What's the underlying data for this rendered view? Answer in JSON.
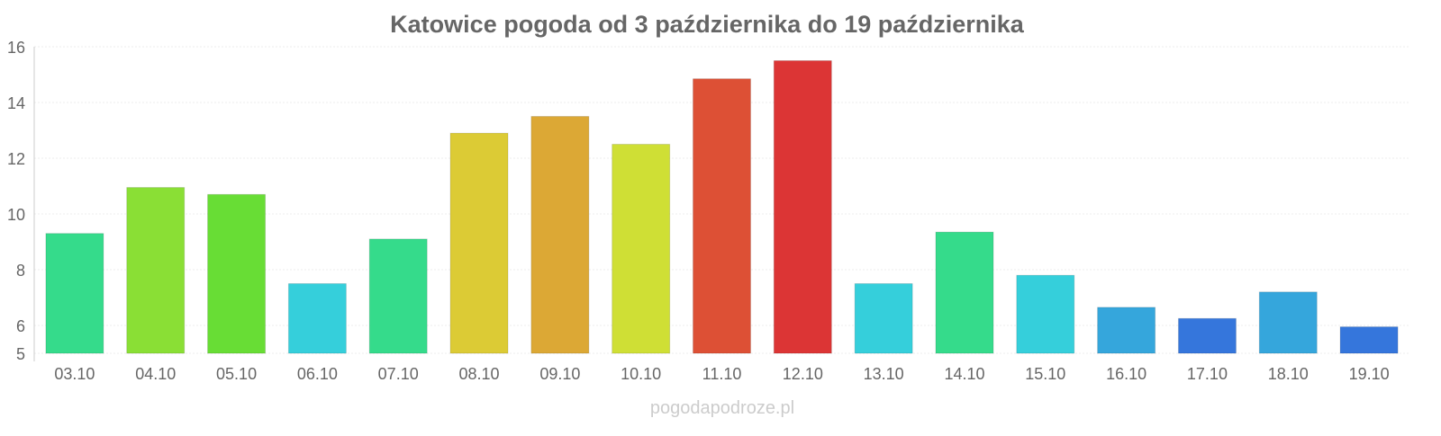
{
  "chart_data": {
    "type": "bar",
    "title": "Katowice pogoda od 3 października do 19 października",
    "xlabel": "",
    "ylabel": "",
    "ylim": [
      5,
      16
    ],
    "yticks": [
      5,
      6,
      8,
      10,
      12,
      14,
      16
    ],
    "grid": true,
    "categories": [
      "03.10",
      "04.10",
      "05.10",
      "06.10",
      "07.10",
      "08.10",
      "09.10",
      "10.10",
      "11.10",
      "12.10",
      "13.10",
      "14.10",
      "15.10",
      "16.10",
      "17.10",
      "18.10",
      "19.10"
    ],
    "values": [
      9.3,
      10.95,
      10.7,
      7.5,
      9.1,
      12.9,
      13.5,
      12.5,
      14.85,
      15.5,
      7.5,
      9.35,
      7.8,
      6.65,
      6.25,
      7.2,
      5.95
    ],
    "colors": [
      "#35db8b",
      "#8adf35",
      "#68dd35",
      "#35cfdb",
      "#35db8b",
      "#dccb35",
      "#dca835",
      "#cfdf35",
      "#dd5035",
      "#dc3535",
      "#35cfdb",
      "#35db8b",
      "#35cfdb",
      "#35a6dc",
      "#3576dc",
      "#35a6dc",
      "#3576dc"
    ]
  },
  "footer": "pogodapodroze.pl"
}
